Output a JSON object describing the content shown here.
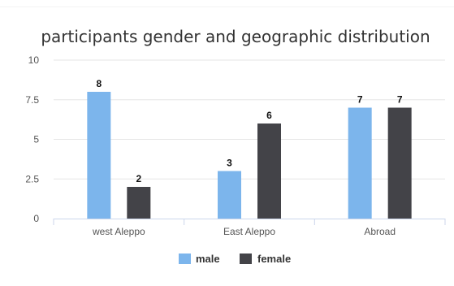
{
  "chart_data": {
    "type": "bar",
    "title": "participants gender and geographic distribution",
    "xlabel": "",
    "ylabel": "",
    "categories": [
      "west Aleppo",
      "East Aleppo",
      "Abroad"
    ],
    "series": [
      {
        "name": "male",
        "values": [
          8,
          3,
          7
        ],
        "color": "#7cb5ec"
      },
      {
        "name": "female",
        "values": [
          2,
          6,
          7
        ],
        "color": "#434348"
      }
    ],
    "ylim": [
      0,
      10
    ],
    "y_ticks": [
      {
        "value": 0,
        "label": "0"
      },
      {
        "value": 2.5,
        "label": "2.5"
      },
      {
        "value": 5,
        "label": "5"
      },
      {
        "value": 7.5,
        "label": "7.5"
      },
      {
        "value": 10,
        "label": "10"
      }
    ],
    "grid": true,
    "legend_position": "bottom-center",
    "data_labels": true
  }
}
